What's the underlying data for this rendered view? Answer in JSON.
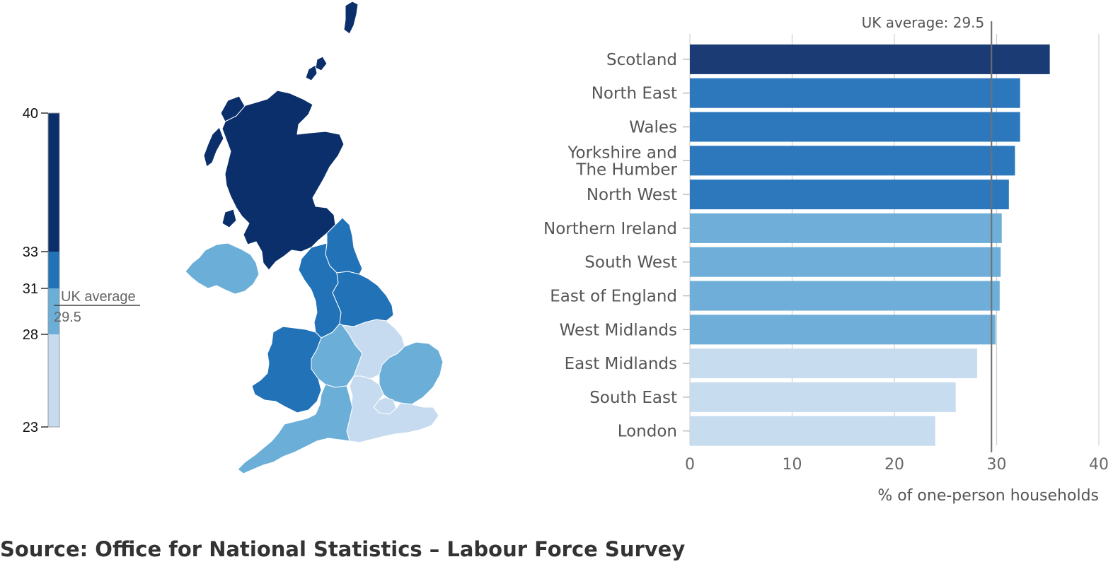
{
  "source_text": "Source: Office for National Statistics – Labour Force Survey",
  "colors": {
    "band_33_40": "#0b2f6b",
    "band_31_33": "#2272b7",
    "band_28_31": "#6baed8",
    "band_23_28": "#c6dbef",
    "bar_top": "#1a3b73",
    "bar_dark": "#2d78bd",
    "bar_mid": "#6eaed9",
    "bar_light": "#c8dcef",
    "gridline": "#d0d0d0",
    "reference_line": "#707070"
  },
  "map_legend": {
    "ticks": [
      "40",
      "33",
      "31",
      "28",
      "23"
    ],
    "average_label": "UK average",
    "average_value": "29.5",
    "bands": [
      {
        "from": 33,
        "to": 40,
        "color": "#0b2f6b"
      },
      {
        "from": 31,
        "to": 33,
        "color": "#2272b7"
      },
      {
        "from": 28,
        "to": 31,
        "color": "#6baed8"
      },
      {
        "from": 23,
        "to": 28,
        "color": "#c6dbef"
      }
    ]
  },
  "chart_data": [
    {
      "type": "map",
      "title": "",
      "regions": [
        {
          "name": "Scotland",
          "band": "33-40"
        },
        {
          "name": "North East",
          "band": "31-33"
        },
        {
          "name": "Wales",
          "band": "31-33"
        },
        {
          "name": "Yorkshire and The Humber",
          "band": "31-33"
        },
        {
          "name": "North West",
          "band": "31-33"
        },
        {
          "name": "Northern Ireland",
          "band": "28-31"
        },
        {
          "name": "South West",
          "band": "28-31"
        },
        {
          "name": "East of England",
          "band": "28-31"
        },
        {
          "name": "West Midlands",
          "band": "28-31"
        },
        {
          "name": "East Midlands",
          "band": "23-28"
        },
        {
          "name": "South East",
          "band": "23-28"
        },
        {
          "name": "London",
          "band": "23-28"
        }
      ]
    },
    {
      "type": "bar",
      "orientation": "horizontal",
      "title": "",
      "categories": [
        "Scotland",
        "North East",
        "Wales",
        "Yorkshire and The Humber",
        "North West",
        "Northern Ireland",
        "South West",
        "East of England",
        "West Midlands",
        "East Midlands",
        "South East",
        "London"
      ],
      "category_lines": [
        [
          "Scotland"
        ],
        [
          "North East"
        ],
        [
          "Wales"
        ],
        [
          "Yorkshire and",
          "The Humber"
        ],
        [
          "North West"
        ],
        [
          "Northern Ireland"
        ],
        [
          "South West"
        ],
        [
          "East of England"
        ],
        [
          "West Midlands"
        ],
        [
          "East Midlands"
        ],
        [
          "South East"
        ],
        [
          "London"
        ]
      ],
      "values": [
        35.2,
        32.3,
        32.3,
        31.8,
        31.2,
        30.5,
        30.4,
        30.3,
        29.9,
        28.1,
        26.0,
        24.0
      ],
      "bar_colors": [
        "#1a3b73",
        "#2d78bd",
        "#2d78bd",
        "#2d78bd",
        "#2d78bd",
        "#6eaed9",
        "#6eaed9",
        "#6eaed9",
        "#6eaed9",
        "#c8dcef",
        "#c8dcef",
        "#c8dcef"
      ],
      "xlabel": "% of one-person households",
      "xlim": [
        0,
        40
      ],
      "xticks": [
        "0",
        "10",
        "20",
        "30",
        "40"
      ],
      "grid": true,
      "reference": {
        "value": 29.5,
        "label": "UK average: 29.5"
      }
    }
  ]
}
